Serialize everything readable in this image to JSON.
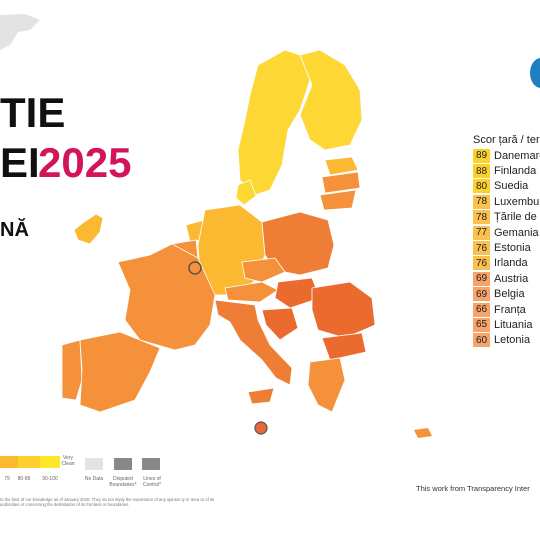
{
  "title": {
    "line1": "TIE",
    "line2_dark": "EI",
    "line2_year": "2025",
    "line3": "NĂ"
  },
  "list": {
    "header": "Scor țară / teri",
    "rows": [
      {
        "score": "89",
        "country": "Danemarc",
        "color": "#fbd12c"
      },
      {
        "score": "88",
        "country": "Finlanda",
        "color": "#fbd12c"
      },
      {
        "score": "80",
        "country": "Suedia",
        "color": "#fbd12c"
      },
      {
        "score": "78",
        "country": "Luxembur",
        "color": "#fbc04e"
      },
      {
        "score": "78",
        "country": "Țările de J",
        "color": "#fbc04e"
      },
      {
        "score": "77",
        "country": "Gemania",
        "color": "#fbc04e"
      },
      {
        "score": "76",
        "country": "Estonia",
        "color": "#fbc04e"
      },
      {
        "score": "76",
        "country": "Irlanda",
        "color": "#fbc04e"
      },
      {
        "score": "69",
        "country": "Austria",
        "color": "#f7a46a"
      },
      {
        "score": "69",
        "country": "Belgia",
        "color": "#f7a46a"
      },
      {
        "score": "66",
        "country": "Franța",
        "color": "#f7a46a"
      },
      {
        "score": "65",
        "country": "Lituania",
        "color": "#f7a46a"
      },
      {
        "score": "60",
        "country": "Letonia",
        "color": "#f7a46a"
      }
    ]
  },
  "legend": {
    "very_clean": "Very Clean",
    "ranges": [
      "79",
      "80-89",
      "90-100"
    ],
    "no_data": "No Data",
    "disputed": "Disputed Boundaries*",
    "lines_of_control": "Lines of Control*"
  },
  "credit": "This work from Transparency Inter",
  "disclaimer": "to the best of our knowledge as of January 2026. They do not imply the expression of any opinion ty or area or of its authorities or concerning the delimitation of its frontiers or boundaries.",
  "colors": {
    "yellow": "#fdd835",
    "light_orange": "#fbb931",
    "orange": "#f4913a",
    "dark_orange": "#ee7e36",
    "red_orange": "#ea6b2d",
    "accent": "#d4145a"
  },
  "icons": {
    "globe": "globe-icon",
    "luxembourg_marker": "circle-marker-icon",
    "malta_marker": "circle-marker-icon"
  }
}
